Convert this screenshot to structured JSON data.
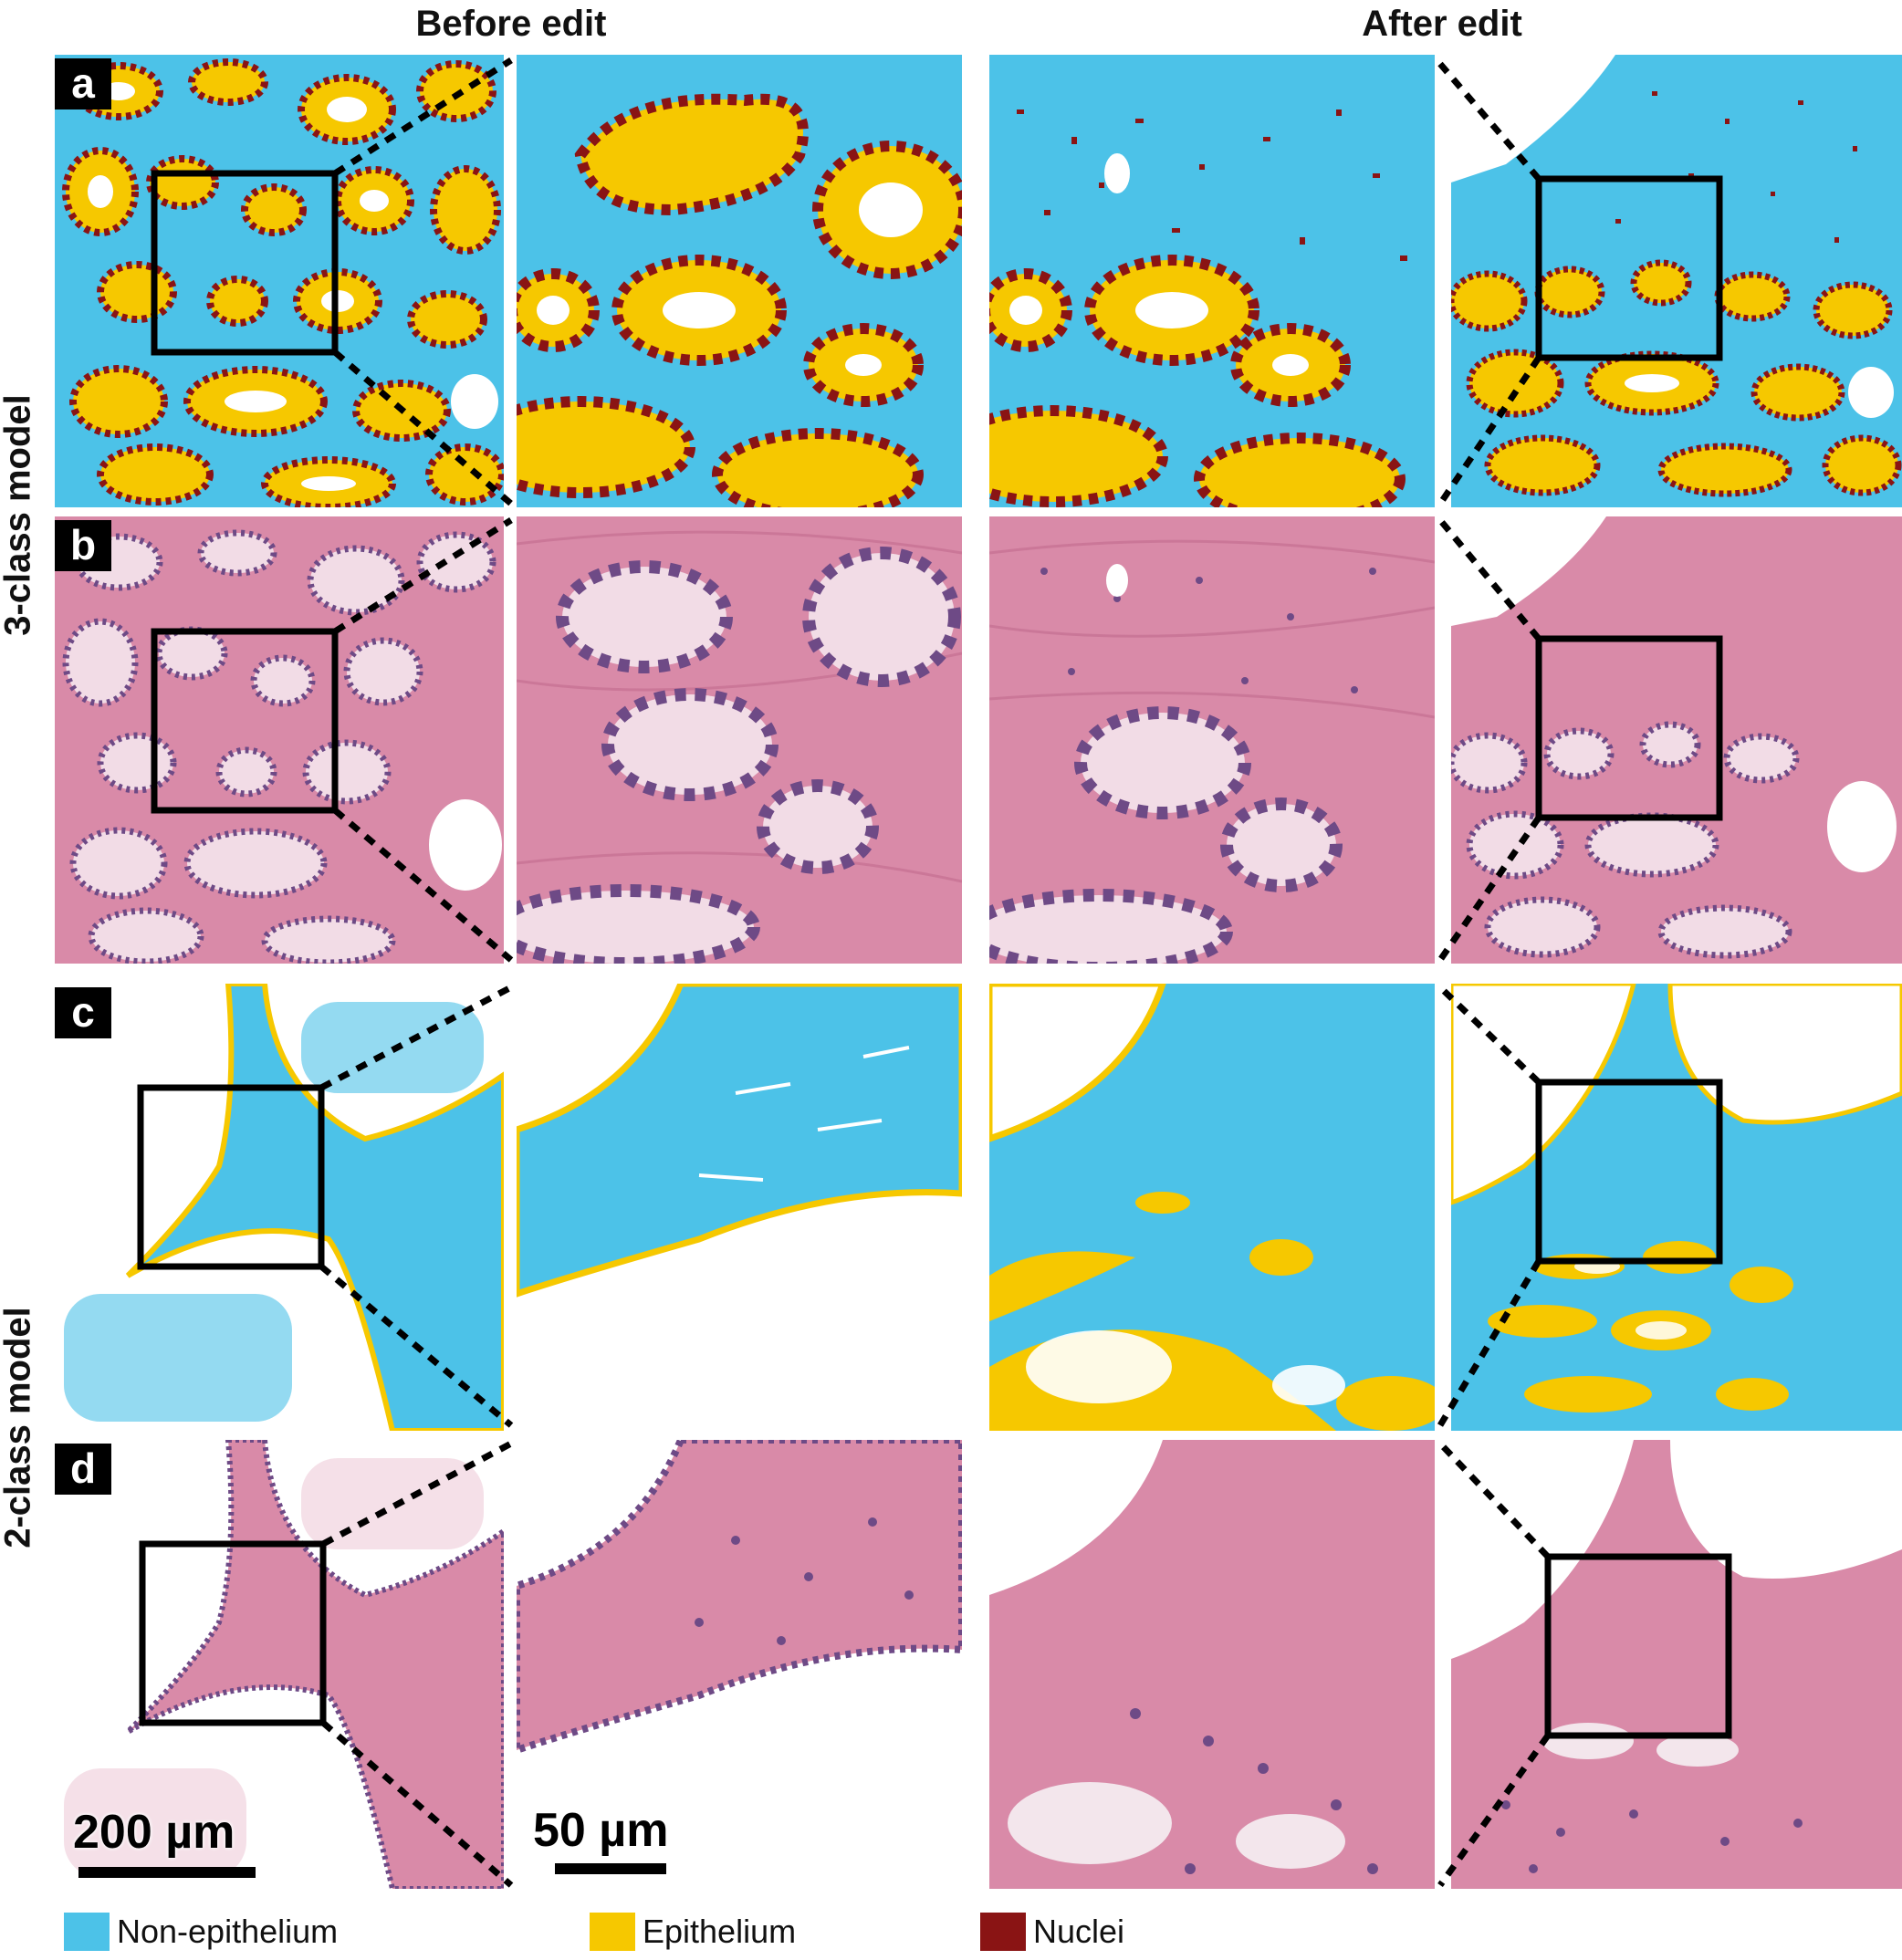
{
  "columns": {
    "before": "Before edit",
    "after": "After edit"
  },
  "rows": {
    "three_class": "3-class model",
    "two_class": "2-class model"
  },
  "panel_labels": [
    "a",
    "b",
    "c",
    "d"
  ],
  "scalebars": {
    "overview": "200 µm",
    "zoom": "50 µm"
  },
  "legend": [
    {
      "label": "Non-epithelium",
      "color": "#4cc2e8"
    },
    {
      "label": "Epithelium",
      "color": "#f6c800"
    },
    {
      "label": "Nuclei",
      "color": "#8a1414"
    }
  ],
  "colors": {
    "stroma": "#4cc2e8",
    "epithelium": "#f6c800",
    "nuclei": "#8a1414",
    "he_pink": "#d98aa8",
    "he_purple": "#6e4a86",
    "background": "#ffffff"
  }
}
